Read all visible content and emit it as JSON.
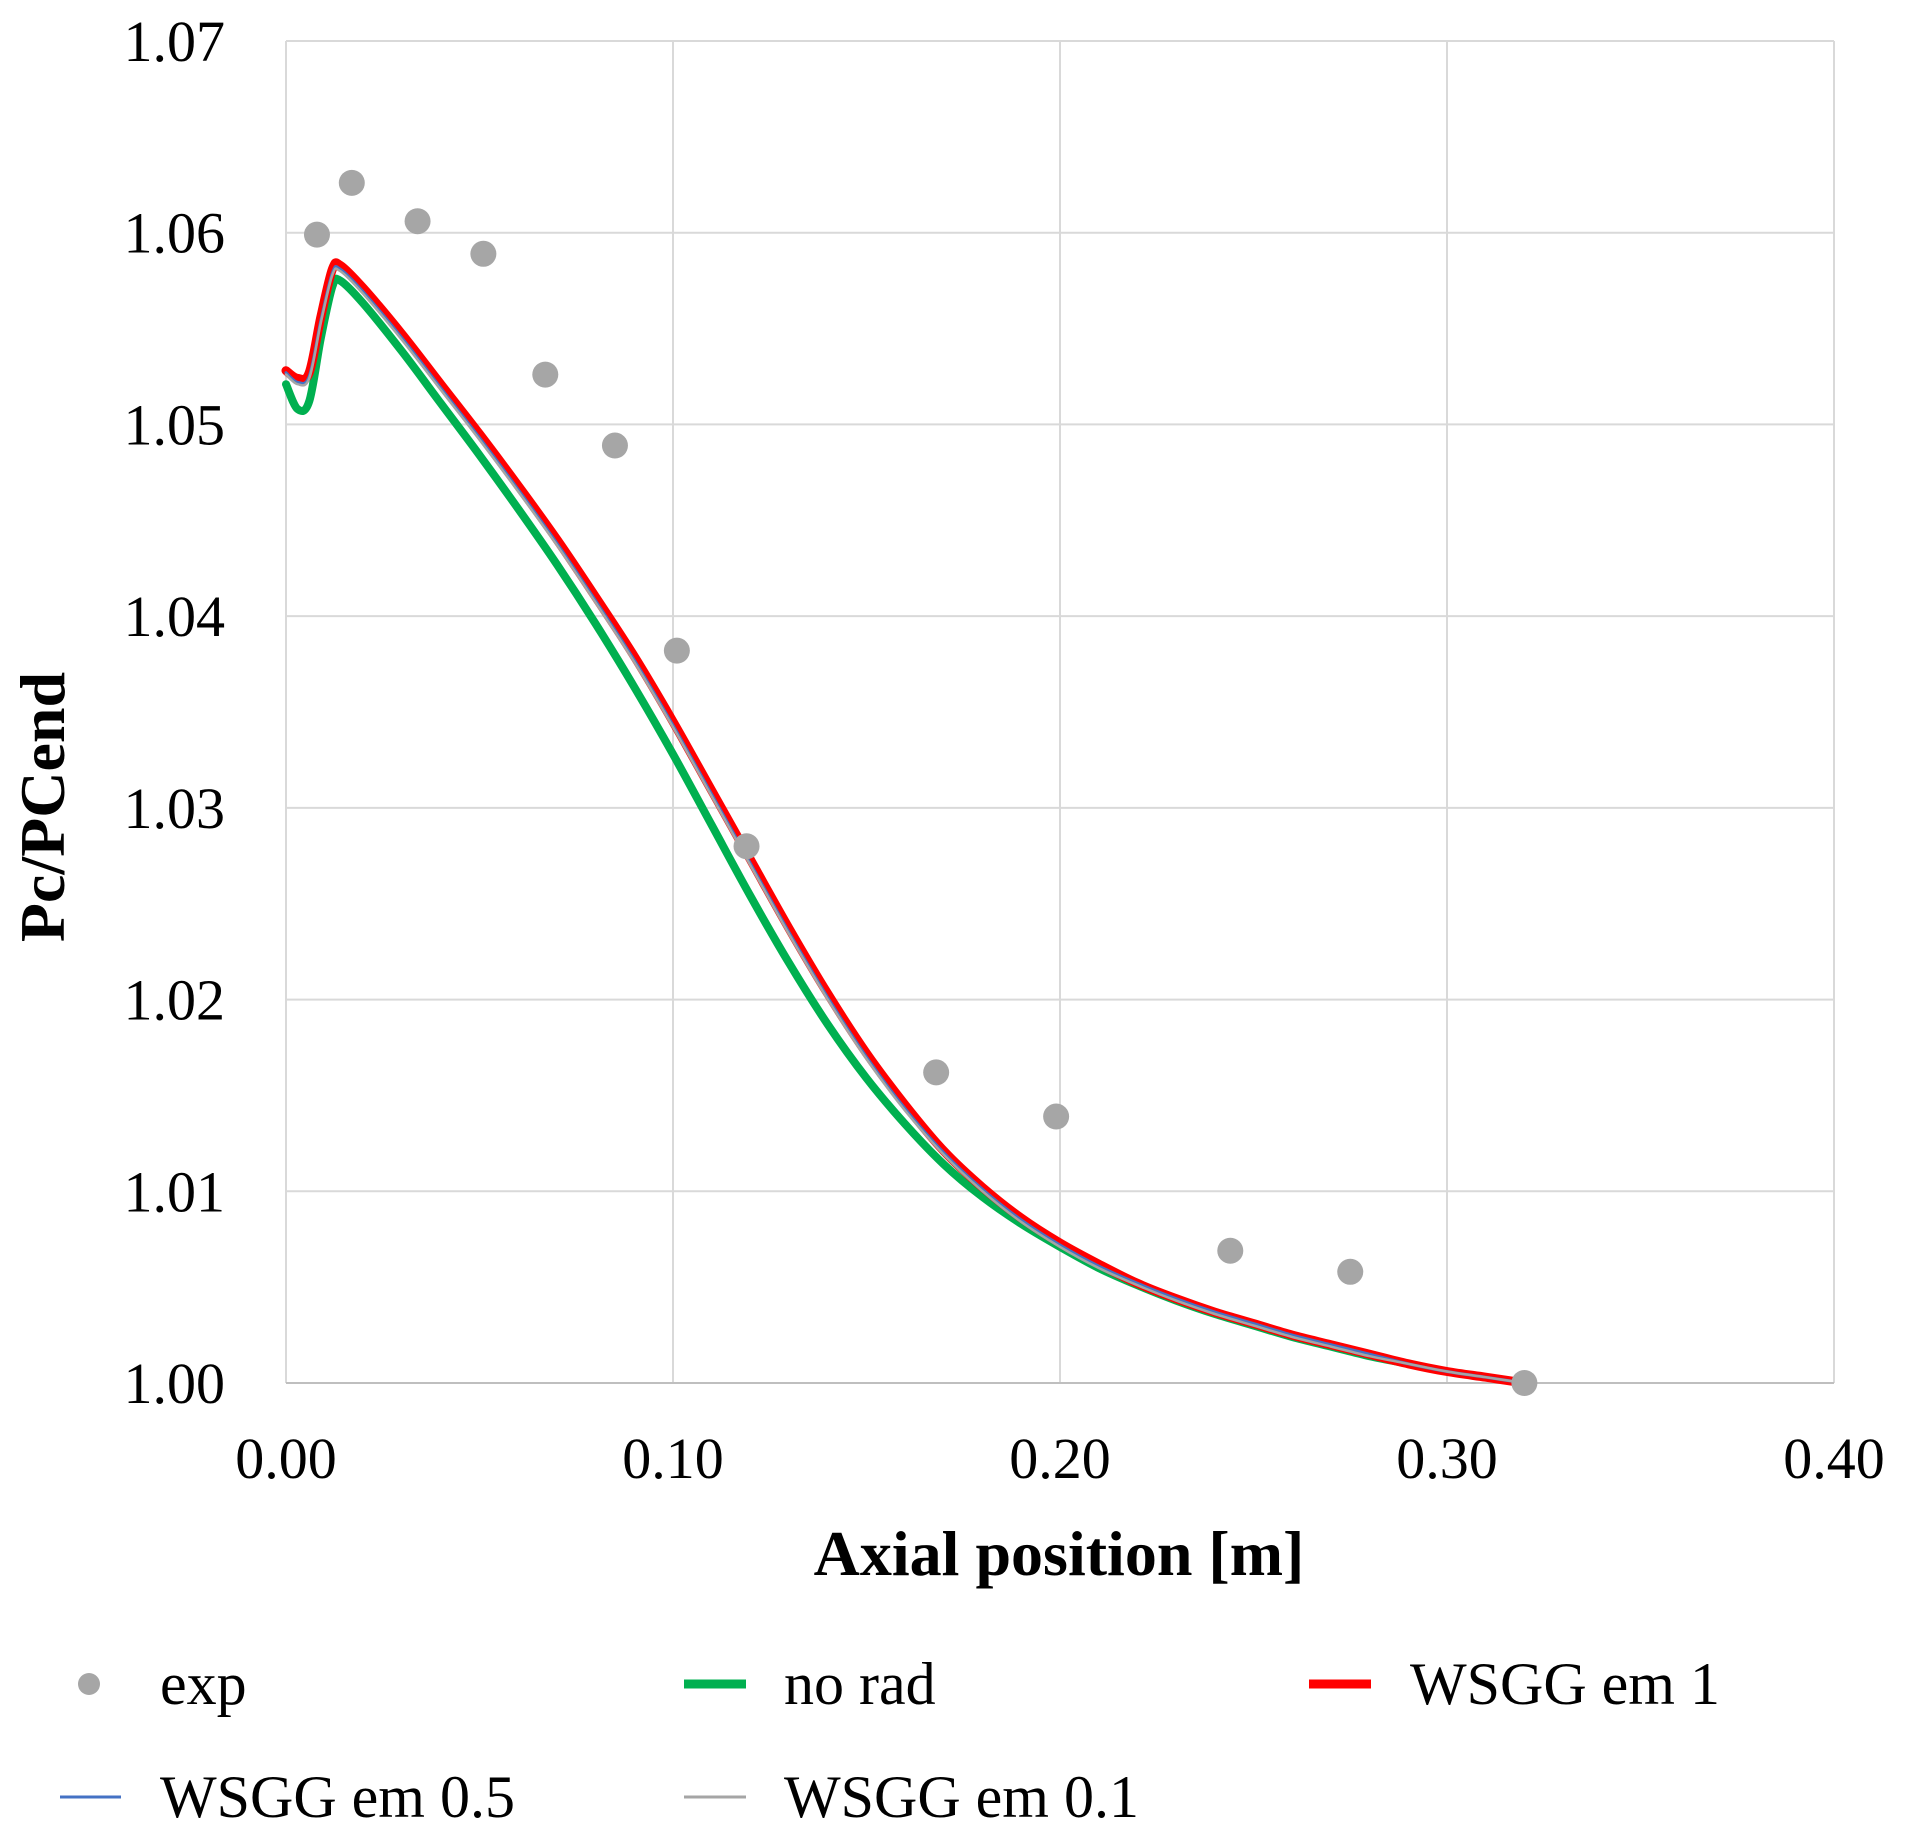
{
  "chart_data": {
    "type": "line",
    "title": "",
    "xlabel": "Axial position [m]",
    "ylabel": "Pc/PCend",
    "xlim": [
      0.0,
      0.4
    ],
    "ylim": [
      1.0,
      1.07
    ],
    "grid": true,
    "legend_position": "bottom",
    "x_ticks": [
      0.0,
      0.1,
      0.2,
      0.3,
      0.4
    ],
    "x_tick_labels": [
      "0.00",
      "0.10",
      "0.20",
      "0.30",
      "0.40"
    ],
    "y_ticks": [
      1.0,
      1.01,
      1.02,
      1.03,
      1.04,
      1.05,
      1.06,
      1.07
    ],
    "y_tick_labels": [
      "1.00",
      "1.01",
      "1.02",
      "1.03",
      "1.04",
      "1.05",
      "1.06",
      "1.07"
    ],
    "series": [
      {
        "name": "exp",
        "kind": "scatter",
        "color": "#a6a6a6",
        "x": [
          0.008,
          0.017,
          0.034,
          0.051,
          0.067,
          0.085,
          0.101,
          0.119,
          0.168,
          0.199,
          0.244,
          0.275,
          0.32
        ],
        "y": [
          1.0599,
          1.0626,
          1.0606,
          1.0589,
          1.0526,
          1.0489,
          1.0382,
          1.028,
          1.0162,
          1.0139,
          1.0069,
          1.0058,
          1.0
        ]
      },
      {
        "name": "no rad",
        "kind": "line",
        "color": "#00b050",
        "x": [
          0.0,
          0.003,
          0.006,
          0.009,
          0.012,
          0.014,
          0.02,
          0.03,
          0.04,
          0.05,
          0.06,
          0.07,
          0.08,
          0.09,
          0.1,
          0.11,
          0.12,
          0.13,
          0.14,
          0.15,
          0.16,
          0.17,
          0.18,
          0.19,
          0.2,
          0.21,
          0.22,
          0.23,
          0.24,
          0.25,
          0.26,
          0.27,
          0.28,
          0.29,
          0.3,
          0.31,
          0.32
        ],
        "y": [
          1.0521,
          1.0508,
          1.0512,
          1.0545,
          1.0572,
          1.0575,
          1.0563,
          1.0538,
          1.0511,
          1.0484,
          1.0456,
          1.0427,
          1.0396,
          1.0363,
          1.0328,
          1.0291,
          1.0254,
          1.0219,
          1.0187,
          1.0159,
          1.0135,
          1.0114,
          1.0097,
          1.0083,
          1.0071,
          1.006,
          1.0051,
          1.0043,
          1.0036,
          1.003,
          1.0024,
          1.0019,
          1.0014,
          1.001,
          1.0006,
          1.0003,
          1.0
        ]
      },
      {
        "name": "WSGG em 1",
        "kind": "line",
        "color": "#ff0000",
        "x": [
          0.0,
          0.003,
          0.006,
          0.009,
          0.012,
          0.014,
          0.02,
          0.03,
          0.04,
          0.05,
          0.06,
          0.07,
          0.08,
          0.09,
          0.1,
          0.11,
          0.12,
          0.13,
          0.14,
          0.15,
          0.16,
          0.17,
          0.18,
          0.19,
          0.2,
          0.21,
          0.22,
          0.23,
          0.24,
          0.25,
          0.26,
          0.27,
          0.28,
          0.29,
          0.3,
          0.31,
          0.32
        ],
        "y": [
          1.0528,
          1.0524,
          1.0527,
          1.0556,
          1.0581,
          1.0583,
          1.0571,
          1.0547,
          1.0521,
          1.0495,
          1.0468,
          1.044,
          1.041,
          1.0379,
          1.0345,
          1.0309,
          1.0273,
          1.0237,
          1.0203,
          1.0172,
          1.0145,
          1.0121,
          1.0102,
          1.0086,
          1.0073,
          1.0062,
          1.0052,
          1.0044,
          1.0037,
          1.0031,
          1.0025,
          1.002,
          1.0015,
          1.001,
          1.0006,
          1.0003,
          1.0
        ]
      },
      {
        "name": "WSGG em 0.5",
        "kind": "line",
        "color": "#4472c4",
        "x": [
          0.0,
          0.003,
          0.006,
          0.009,
          0.012,
          0.014,
          0.02,
          0.03,
          0.04,
          0.05,
          0.06,
          0.07,
          0.08,
          0.09,
          0.1,
          0.11,
          0.12,
          0.13,
          0.14,
          0.15,
          0.16,
          0.17,
          0.18,
          0.19,
          0.2,
          0.21,
          0.22,
          0.23,
          0.24,
          0.25,
          0.26,
          0.27,
          0.28,
          0.29,
          0.3,
          0.31,
          0.32
        ],
        "y": [
          1.0527,
          1.0522,
          1.0525,
          1.0554,
          1.0579,
          1.0581,
          1.0569,
          1.0545,
          1.0519,
          1.0493,
          1.0466,
          1.0438,
          1.0408,
          1.0377,
          1.0343,
          1.0307,
          1.0271,
          1.0235,
          1.0201,
          1.017,
          1.0143,
          1.012,
          1.0101,
          1.0085,
          1.0072,
          1.0061,
          1.0052,
          1.0044,
          1.0037,
          1.0031,
          1.0025,
          1.002,
          1.0015,
          1.001,
          1.0006,
          1.0003,
          1.0
        ]
      },
      {
        "name": "WSGG em 0.1",
        "kind": "line",
        "color": "#a5a5a5",
        "x": [
          0.0,
          0.003,
          0.006,
          0.009,
          0.012,
          0.014,
          0.02,
          0.03,
          0.04,
          0.05,
          0.06,
          0.07,
          0.08,
          0.09,
          0.1,
          0.11,
          0.12,
          0.13,
          0.14,
          0.15,
          0.16,
          0.17,
          0.18,
          0.19,
          0.2,
          0.21,
          0.22,
          0.23,
          0.24,
          0.25,
          0.26,
          0.27,
          0.28,
          0.29,
          0.3,
          0.31,
          0.32
        ],
        "y": [
          1.0526,
          1.0521,
          1.0524,
          1.0553,
          1.0578,
          1.058,
          1.0568,
          1.0544,
          1.0518,
          1.0492,
          1.0465,
          1.0437,
          1.0407,
          1.0376,
          1.0342,
          1.0306,
          1.027,
          1.0234,
          1.02,
          1.0169,
          1.0142,
          1.0119,
          1.01,
          1.0084,
          1.0071,
          1.006,
          1.0051,
          1.0043,
          1.0036,
          1.003,
          1.0024,
          1.0019,
          1.0014,
          1.001,
          1.0006,
          1.0003,
          1.0
        ]
      }
    ],
    "legend": [
      {
        "label": "exp",
        "marker": "dot",
        "color": "#a6a6a6"
      },
      {
        "label": "no rad",
        "marker": "line",
        "color": "#00b050"
      },
      {
        "label": "WSGG em 1",
        "marker": "line",
        "color": "#ff0000"
      },
      {
        "label": "WSGG em 0.5",
        "marker": "line",
        "color": "#4472c4"
      },
      {
        "label": "WSGG em 0.1",
        "marker": "line",
        "color": "#a5a5a5"
      }
    ]
  }
}
